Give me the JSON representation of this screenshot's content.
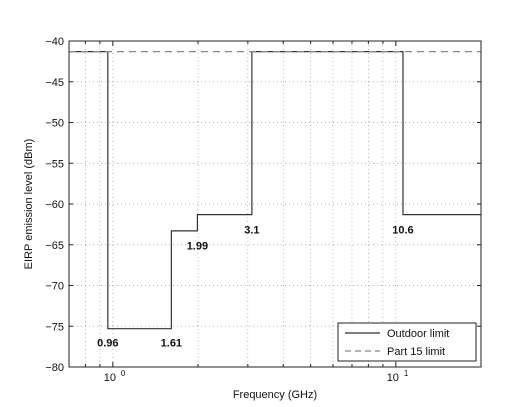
{
  "chart_data": {
    "type": "line",
    "xlabel": "Frequency (GHz)",
    "ylabel": "EIRP emission level (dBm)",
    "x_scale": "log",
    "xlim": [
      0.7,
      20
    ],
    "ylim": [
      -80,
      -40
    ],
    "x_ticks": [
      {
        "value": 1,
        "base": "10",
        "exp": "0"
      },
      {
        "value": 10,
        "base": "10",
        "exp": "1"
      }
    ],
    "y_ticks": [
      -40,
      -45,
      -50,
      -55,
      -60,
      -65,
      -70,
      -75,
      -80
    ],
    "grid": true,
    "legend_position": "bottom-right",
    "series": [
      {
        "name": "Outdoor limit",
        "style": "solid",
        "color": "#333333",
        "x": [
          0.7,
          0.96,
          0.96,
          1.61,
          1.61,
          1.99,
          1.99,
          3.1,
          3.1,
          10.6,
          10.6,
          20
        ],
        "y": [
          -41.3,
          -41.3,
          -75.3,
          -75.3,
          -63.3,
          -63.3,
          -61.3,
          -61.3,
          -41.3,
          -41.3,
          -61.3,
          -61.3
        ]
      },
      {
        "name": "Part 15 limit",
        "style": "dashed",
        "color": "#888888",
        "x": [
          0.7,
          20
        ],
        "y": [
          -41.3,
          -41.3
        ]
      }
    ],
    "annotations": [
      {
        "text": "0.96",
        "x": 0.96,
        "y": -77.0
      },
      {
        "text": "1.61",
        "x": 1.61,
        "y": -77.0
      },
      {
        "text": "1.99",
        "x": 1.99,
        "y": -65.1
      },
      {
        "text": "3.1",
        "x": 3.1,
        "y": -63.1
      },
      {
        "text": "10.6",
        "x": 10.6,
        "y": -63.1
      }
    ]
  }
}
